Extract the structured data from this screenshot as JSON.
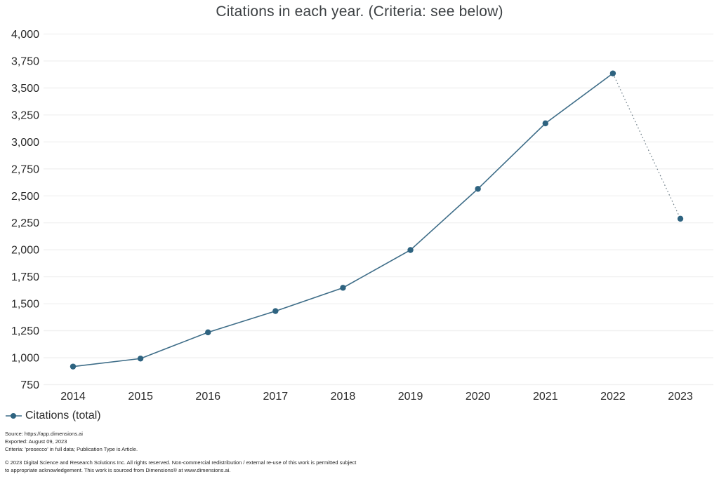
{
  "legend": {
    "marker": "line-dot-marker"
  },
  "footer": {
    "source": "Source: https://app.dimensions.ai",
    "exported": "Exported: August 09, 2023",
    "criteria": "Criteria: 'prosecco' in full data; Publication Type is Article.",
    "copyright": "© 2023 Digital Science and Research Solutions Inc. All rights reserved. Non-commercial redistribution / external re-use of this work is permitted subject to appropriate acknowledgement. This work is sourced from Dimensions® at www.dimensions.ai."
  },
  "colors": {
    "line": "#3e6d88",
    "marker": "#2e6380",
    "grid": "#f0f0f0",
    "title_text": "#3c4043",
    "axis_text": "#2a2a2a"
  },
  "chart_data": {
    "type": "line",
    "title": "Citations in each year. (Criteria: see below)",
    "x": [
      2014,
      2015,
      2016,
      2017,
      2018,
      2019,
      2020,
      2021,
      2022,
      2023
    ],
    "series": [
      {
        "name": "Citations (total)",
        "values": [
          918,
          992,
          1235,
          1432,
          1648,
          1998,
          2565,
          3172,
          3635,
          2288
        ]
      }
    ],
    "xlabel": "",
    "ylabel": "",
    "ylim": [
      750,
      4000
    ],
    "ytick_step": 250,
    "grid": true,
    "legend_position": "bottom-left",
    "last_segment_style": "dotted",
    "note": "final segment 2022-2023 drawn dotted (partial year)"
  }
}
